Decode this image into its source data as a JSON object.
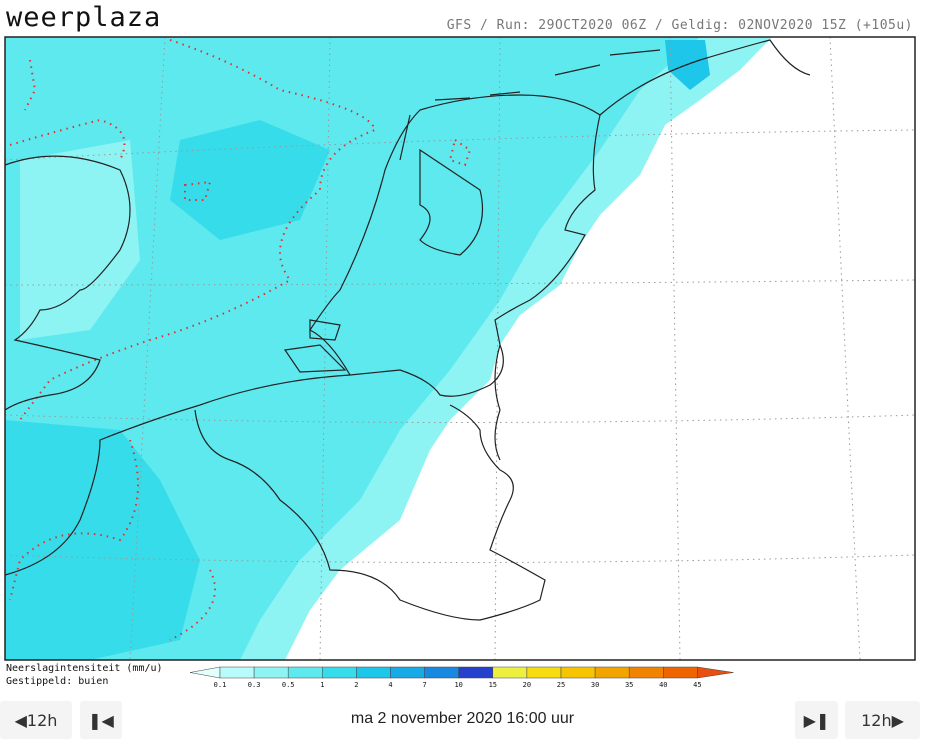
{
  "header": {
    "logo": "weerplaza",
    "run_info": "GFS / Run: 29OCT2020 06Z / Geldig: 02NOV2020 15Z (+105u)"
  },
  "legend": {
    "title": "Neerslagintensiteit (mm/u)",
    "subtitle": "Gestippeld: buien",
    "labels": [
      "0.1",
      "0.3",
      "0.5",
      "1",
      "2",
      "4",
      "7",
      "10",
      "15",
      "20",
      "25",
      "30",
      "35",
      "40",
      "45"
    ],
    "colors": [
      "#e4fdfd",
      "#b8fbfb",
      "#8ef3f3",
      "#5ee9ef",
      "#36dcea",
      "#1ec6ea",
      "#18aae6",
      "#1888e0",
      "#2440cc",
      "#eef040",
      "#f6dc10",
      "#f6c400",
      "#f2a400",
      "#f08400",
      "#ee6400",
      "#e85010"
    ]
  },
  "nav": {
    "prev": "12h",
    "date": "ma 2 november 2020 16:00 uur",
    "next": "12h"
  }
}
